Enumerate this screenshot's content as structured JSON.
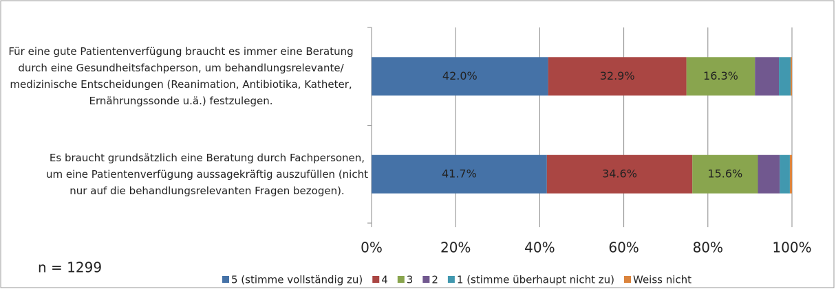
{
  "chart_data": {
    "type": "stacked-bar-horizontal",
    "categories": [
      "Für eine gute Patientenverfügung braucht es immer eine Beratung durch eine Gesundheitsfachperson, um behandlungsrelevante/ medizinische Entscheidungen (Reanimation, Antibiotika, Katheter, Ernährungssonde u.ä.) festzulegen.",
      "Es braucht grundsätzlich eine Beratung durch Fachpersonen, um eine Patientenverfügung aussagekräftig auszufüllen (nicht nur auf die behandlungsrelevanten Fragen bezogen)."
    ],
    "series": [
      {
        "name": "5 (stimme vollständig zu)",
        "color": "#4572a7",
        "values": [
          42.0,
          41.7
        ],
        "value_labels": [
          "42.0%",
          "41.7%"
        ]
      },
      {
        "name": "4",
        "color": "#aa4643",
        "values": [
          32.9,
          34.6
        ],
        "value_labels": [
          "32.9%",
          "34.6%"
        ]
      },
      {
        "name": "3",
        "color": "#89a54e",
        "values": [
          16.3,
          15.6
        ],
        "value_labels": [
          "16.3%",
          "15.6%"
        ]
      },
      {
        "name": "2",
        "color": "#71588f",
        "values": [
          5.7,
          5.2
        ]
      },
      {
        "name": "1 (stimme überhaupt nicht zu)",
        "color": "#4198af",
        "values": [
          2.8,
          2.4
        ]
      },
      {
        "name": "Weiss nicht",
        "color": "#db843d",
        "values": [
          0.3,
          0.5
        ]
      }
    ],
    "xlim": [
      0,
      100
    ],
    "xticks": [
      {
        "value": 0,
        "label": "0%"
      },
      {
        "value": 20,
        "label": "20%"
      },
      {
        "value": 40,
        "label": "40%"
      },
      {
        "value": 60,
        "label": "60%"
      },
      {
        "value": 80,
        "label": "80%"
      },
      {
        "value": 100,
        "label": "100%"
      }
    ],
    "grid": true,
    "legend": "bottom",
    "annotation": "n = 1299"
  }
}
